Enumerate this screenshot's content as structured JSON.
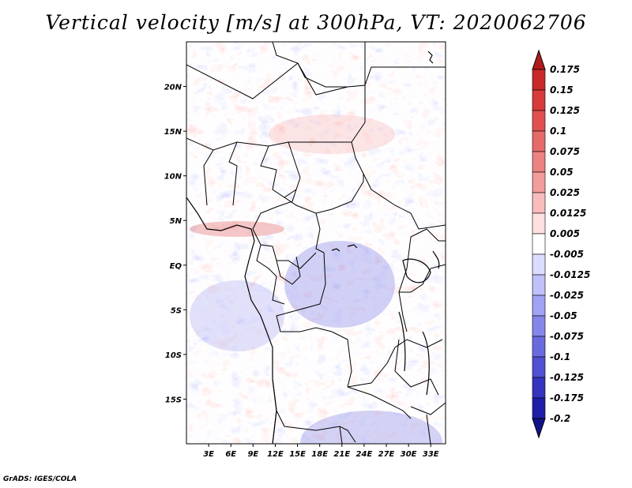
{
  "title": "Vertical velocity [m/s] at 300hPa, VT: 2020062706",
  "credit": "GrADS: IGES/COLA",
  "map": {
    "lon_range": [
      0,
      35
    ],
    "lat_range": [
      -20,
      25
    ],
    "lat_ticks": [
      {
        "value": 20,
        "label": "20N"
      },
      {
        "value": 15,
        "label": "15N"
      },
      {
        "value": 10,
        "label": "10N"
      },
      {
        "value": 5,
        "label": "5N"
      },
      {
        "value": 0,
        "label": "EQ"
      },
      {
        "value": -5,
        "label": "5S"
      },
      {
        "value": -10,
        "label": "10S"
      },
      {
        "value": -15,
        "label": "15S"
      }
    ],
    "lon_ticks": [
      {
        "value": 3,
        "label": "3E"
      },
      {
        "value": 6,
        "label": "6E"
      },
      {
        "value": 9,
        "label": "9E"
      },
      {
        "value": 12,
        "label": "12E"
      },
      {
        "value": 15,
        "label": "15E"
      },
      {
        "value": 18,
        "label": "18E"
      },
      {
        "value": 21,
        "label": "21E"
      },
      {
        "value": 24,
        "label": "24E"
      },
      {
        "value": 27,
        "label": "27E"
      },
      {
        "value": 30,
        "label": "30E"
      },
      {
        "value": 33,
        "label": "33E"
      }
    ]
  },
  "colorbar": {
    "levels": [
      "0.175",
      "0.15",
      "0.125",
      "0.1",
      "0.075",
      "0.05",
      "0.025",
      "0.0125",
      "0.005",
      "-0.005",
      "-0.0125",
      "-0.025",
      "-0.05",
      "-0.075",
      "-0.1",
      "-0.125",
      "-0.175",
      "-0.2"
    ],
    "colors": [
      "#b01c1c",
      "#c82a2a",
      "#d63a3a",
      "#e05050",
      "#e66a6a",
      "#ec8282",
      "#f29c9c",
      "#f8bcbc",
      "#fde0e0",
      "#ffffff",
      "#dcdcff",
      "#c0c0fa",
      "#a2a2f2",
      "#8686ea",
      "#6a6ae0",
      "#5050d2",
      "#3434be",
      "#1e1ea8",
      "#12128c"
    ]
  }
}
